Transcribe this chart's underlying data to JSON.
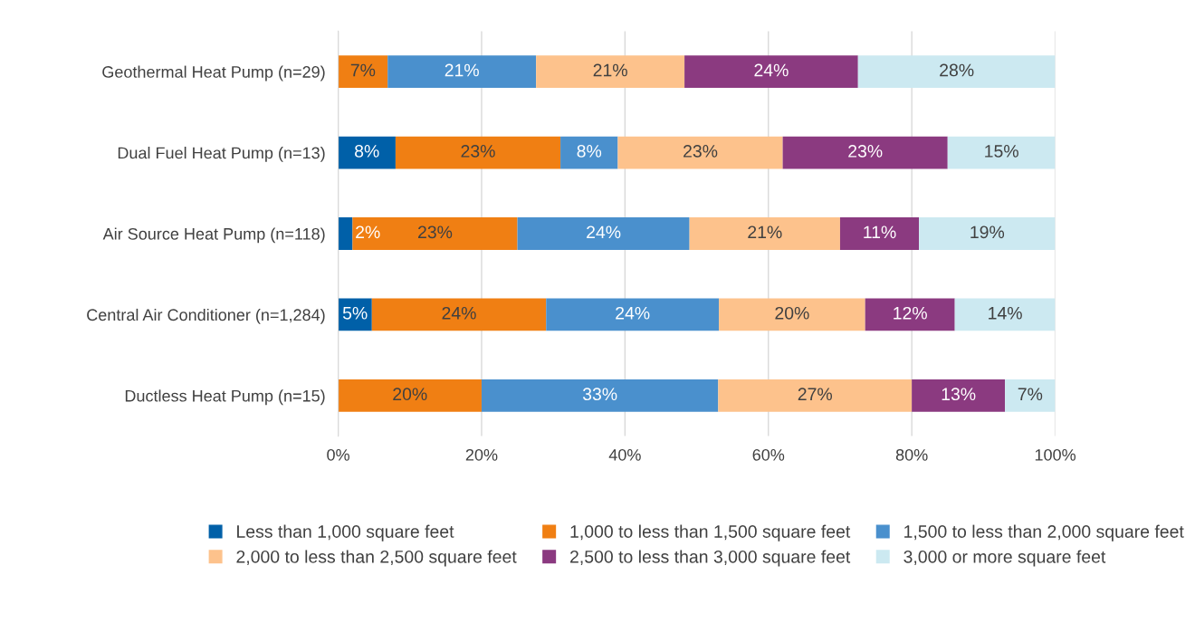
{
  "chart_data": {
    "type": "bar",
    "orientation": "horizontal",
    "stacked": true,
    "categories": [
      "Geothermal Heat Pump (n=29)",
      "Dual Fuel Heat Pump (n=13)",
      "Air Source Heat Pump (n=118)",
      "Central Air Conditioner (n=1,284)",
      "Ductless Heat Pump (n=15)"
    ],
    "series": [
      {
        "name": "Less than 1,000 square feet",
        "color": "#0060a8",
        "values": [
          null,
          8,
          2,
          4.7,
          null
        ],
        "value_labels": [
          null,
          "8%",
          "2%",
          "5%",
          null
        ]
      },
      {
        "name": "1,000 to less than 1,500 square feet",
        "color": "#f07f13",
        "values": [
          6.9,
          23,
          23,
          24.3,
          20
        ],
        "value_labels": [
          "7%",
          "23%",
          "23%",
          "24%",
          "20%"
        ]
      },
      {
        "name": "1,500 to less than 2,000 square feet",
        "color": "#4a90cd",
        "values": [
          20.7,
          8,
          24,
          24.1,
          33
        ],
        "value_labels": [
          "21%",
          "8%",
          "24%",
          "24%",
          "33%"
        ]
      },
      {
        "name": "2,000 to less than 2,500 square feet",
        "color": "#fdc28c",
        "values": [
          20.7,
          23,
          21,
          20.4,
          27
        ],
        "value_labels": [
          "21%",
          "23%",
          "21%",
          "20%",
          "27%"
        ]
      },
      {
        "name": "2,500 to less than 3,000 square feet",
        "color": "#8b3a80",
        "values": [
          24.2,
          23,
          11,
          12.5,
          13
        ],
        "value_labels": [
          "24%",
          "23%",
          "11%",
          "12%",
          "13%"
        ]
      },
      {
        "name": "3,000 or more square feet",
        "color": "#cce9f1",
        "values": [
          27.5,
          15,
          19,
          14.0,
          7
        ],
        "value_labels": [
          "28%",
          "15%",
          "19%",
          "14%",
          "7%"
        ]
      }
    ],
    "xlim": [
      0,
      100
    ],
    "xticks": [
      {
        "value": 0,
        "label": "0%"
      },
      {
        "value": 20,
        "label": "20%"
      },
      {
        "value": 40,
        "label": "40%"
      },
      {
        "value": 60,
        "label": "60%"
      },
      {
        "value": 80,
        "label": "80%"
      },
      {
        "value": 100,
        "label": "100%"
      }
    ],
    "grid": "x",
    "legend": "bottom"
  }
}
